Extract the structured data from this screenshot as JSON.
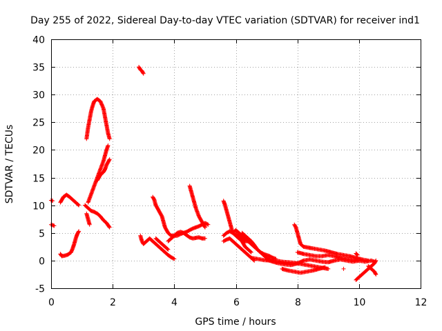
{
  "chart_data": {
    "type": "scatter",
    "title": "Day 255 of 2022, Sidereal Day-to-day VTEC variation (SDTVAR) for receiver ind1",
    "xlabel": "GPS time / hours",
    "ylabel": "SDTVAR / TECUs",
    "xlim": [
      0,
      12
    ],
    "ylim": [
      -5,
      40
    ],
    "xticks": [
      0,
      2,
      4,
      6,
      8,
      10,
      12
    ],
    "yticks": [
      -5,
      0,
      5,
      10,
      15,
      20,
      25,
      30,
      35,
      40
    ],
    "grid": true,
    "marker": "+",
    "color": "#ff0000",
    "tracks": [
      [
        [
          0.0,
          10.9
        ],
        [
          0.05,
          10.8
        ]
      ],
      [
        [
          0.0,
          6.5
        ],
        [
          0.05,
          6.4
        ],
        [
          0.1,
          6.3
        ]
      ],
      [
        [
          0.3,
          10.5
        ],
        [
          0.4,
          11.5
        ],
        [
          0.5,
          11.9
        ],
        [
          0.6,
          11.5
        ],
        [
          0.7,
          11.0
        ],
        [
          0.8,
          10.5
        ],
        [
          0.9,
          10.0
        ]
      ],
      [
        [
          0.3,
          1.2
        ],
        [
          0.35,
          0.8
        ],
        [
          0.45,
          0.9
        ],
        [
          0.55,
          1.1
        ],
        [
          0.65,
          1.5
        ],
        [
          0.7,
          2.2
        ],
        [
          0.75,
          3.0
        ],
        [
          0.8,
          4.0
        ],
        [
          0.85,
          4.8
        ],
        [
          0.9,
          5.3
        ]
      ],
      [
        [
          1.1,
          10.0
        ],
        [
          1.2,
          9.5
        ],
        [
          1.3,
          9.0
        ],
        [
          1.4,
          8.8
        ],
        [
          1.5,
          8.5
        ],
        [
          1.6,
          8.0
        ],
        [
          1.7,
          7.3
        ],
        [
          1.8,
          6.8
        ],
        [
          1.9,
          6.0
        ]
      ],
      [
        [
          1.15,
          8.5
        ],
        [
          1.2,
          7.5
        ],
        [
          1.25,
          6.5
        ]
      ],
      [
        [
          1.15,
          22.0
        ],
        [
          1.2,
          24.0
        ],
        [
          1.25,
          25.5
        ],
        [
          1.3,
          27.0
        ],
        [
          1.35,
          28.0
        ],
        [
          1.4,
          28.8
        ],
        [
          1.5,
          29.2
        ],
        [
          1.6,
          28.8
        ],
        [
          1.7,
          27.5
        ],
        [
          1.75,
          26.0
        ],
        [
          1.8,
          24.5
        ],
        [
          1.85,
          23.0
        ],
        [
          1.9,
          22.0
        ]
      ],
      [
        [
          1.2,
          10.5
        ],
        [
          1.3,
          12.0
        ],
        [
          1.4,
          13.5
        ],
        [
          1.5,
          15.0
        ],
        [
          1.6,
          16.5
        ],
        [
          1.7,
          18.0
        ],
        [
          1.75,
          19.0
        ],
        [
          1.8,
          20.0
        ],
        [
          1.85,
          20.8
        ]
      ],
      [
        [
          1.5,
          14.5
        ],
        [
          1.6,
          15.5
        ],
        [
          1.7,
          16.0
        ],
        [
          1.75,
          16.5
        ],
        [
          1.8,
          17.3
        ],
        [
          1.85,
          17.8
        ],
        [
          1.9,
          18.3
        ]
      ],
      [
        [
          2.85,
          35.0
        ],
        [
          2.9,
          34.5
        ],
        [
          2.95,
          34.3
        ],
        [
          3.0,
          33.8
        ]
      ],
      [
        [
          2.9,
          4.5
        ],
        [
          2.95,
          3.5
        ],
        [
          3.0,
          3.0
        ],
        [
          3.1,
          3.5
        ],
        [
          3.2,
          4.0
        ],
        [
          3.3,
          3.5
        ],
        [
          3.4,
          3.0
        ],
        [
          3.5,
          2.5
        ],
        [
          3.6,
          2.0
        ],
        [
          3.7,
          1.5
        ],
        [
          3.8,
          1.0
        ],
        [
          3.9,
          0.6
        ],
        [
          4.0,
          0.3
        ]
      ],
      [
        [
          3.3,
          11.5
        ],
        [
          3.35,
          11.0
        ],
        [
          3.4,
          10.0
        ],
        [
          3.5,
          9.0
        ],
        [
          3.6,
          8.0
        ],
        [
          3.65,
          7.0
        ],
        [
          3.7,
          6.0
        ],
        [
          3.8,
          5.0
        ],
        [
          3.9,
          4.5
        ],
        [
          4.0,
          4.5
        ],
        [
          4.1,
          4.5
        ],
        [
          4.2,
          4.8
        ],
        [
          4.3,
          5.0
        ],
        [
          4.4,
          4.6
        ],
        [
          4.5,
          4.2
        ],
        [
          4.6,
          4.0
        ],
        [
          4.7,
          4.1
        ],
        [
          4.8,
          4.2
        ],
        [
          4.9,
          4.0
        ],
        [
          5.0,
          4.0
        ]
      ],
      [
        [
          3.4,
          4.0
        ],
        [
          3.5,
          3.5
        ],
        [
          3.6,
          3.0
        ],
        [
          3.7,
          2.5
        ],
        [
          3.8,
          2.0
        ]
      ],
      [
        [
          3.8,
          3.5
        ],
        [
          3.9,
          4.0
        ],
        [
          4.0,
          4.5
        ],
        [
          4.1,
          5.0
        ],
        [
          4.2,
          5.2
        ],
        [
          4.3,
          5.0
        ],
        [
          4.4,
          5.2
        ],
        [
          4.5,
          5.5
        ],
        [
          4.6,
          5.8
        ],
        [
          4.7,
          6.0
        ],
        [
          4.8,
          6.2
        ],
        [
          4.9,
          6.5
        ],
        [
          5.0,
          6.8
        ],
        [
          5.1,
          6.5
        ]
      ],
      [
        [
          4.5,
          13.5
        ],
        [
          4.55,
          12.5
        ],
        [
          4.6,
          11.5
        ],
        [
          4.65,
          10.5
        ],
        [
          4.7,
          9.5
        ],
        [
          4.8,
          8.0
        ],
        [
          4.9,
          7.0
        ],
        [
          5.0,
          6.0
        ]
      ],
      [
        [
          5.6,
          10.8
        ],
        [
          5.65,
          10.0
        ],
        [
          5.7,
          9.0
        ],
        [
          5.75,
          8.0
        ],
        [
          5.8,
          7.0
        ],
        [
          5.85,
          6.0
        ],
        [
          5.9,
          5.0
        ],
        [
          6.0,
          4.5
        ],
        [
          6.1,
          4.0
        ],
        [
          6.2,
          3.5
        ],
        [
          6.3,
          2.5
        ],
        [
          6.4,
          2.0
        ],
        [
          6.5,
          1.5
        ]
      ],
      [
        [
          5.6,
          4.5
        ],
        [
          5.7,
          5.0
        ],
        [
          5.8,
          5.3
        ],
        [
          5.9,
          5.0
        ],
        [
          6.0,
          5.5
        ],
        [
          6.1,
          5.0
        ],
        [
          6.2,
          4.5
        ],
        [
          6.3,
          4.0
        ],
        [
          6.4,
          3.5
        ],
        [
          6.5,
          3.0
        ],
        [
          6.6,
          2.5
        ],
        [
          6.7,
          2.0
        ],
        [
          6.8,
          1.5
        ],
        [
          6.9,
          1.0
        ],
        [
          7.0,
          0.5
        ]
      ],
      [
        [
          5.6,
          3.5
        ],
        [
          5.7,
          3.8
        ],
        [
          5.8,
          4.0
        ],
        [
          5.9,
          3.5
        ],
        [
          6.0,
          3.0
        ],
        [
          6.1,
          2.5
        ],
        [
          6.2,
          2.0
        ],
        [
          6.3,
          1.5
        ],
        [
          6.4,
          1.0
        ],
        [
          6.5,
          0.5
        ],
        [
          6.6,
          0.0
        ]
      ],
      [
        [
          6.0,
          4.8
        ],
        [
          6.1,
          4.5
        ],
        [
          6.2,
          4.0
        ],
        [
          6.3,
          3.5
        ],
        [
          6.4,
          3.5
        ],
        [
          6.5,
          3.0
        ],
        [
          6.6,
          2.5
        ],
        [
          6.7,
          2.0
        ],
        [
          6.8,
          1.5
        ],
        [
          6.9,
          1.2
        ],
        [
          7.0,
          1.0
        ],
        [
          7.1,
          0.8
        ],
        [
          7.2,
          0.5
        ],
        [
          7.3,
          0.3
        ]
      ],
      [
        [
          6.2,
          5.0
        ],
        [
          6.3,
          4.5
        ],
        [
          6.4,
          4.0
        ],
        [
          6.5,
          3.5
        ],
        [
          6.6,
          2.8
        ],
        [
          6.7,
          2.0
        ],
        [
          6.8,
          1.5
        ],
        [
          6.9,
          1.0
        ],
        [
          7.0,
          0.5
        ],
        [
          7.1,
          0.2
        ]
      ],
      [
        [
          6.5,
          0.5
        ],
        [
          6.7,
          0.3
        ],
        [
          6.9,
          0.1
        ],
        [
          7.1,
          0.0
        ],
        [
          7.3,
          0.0
        ],
        [
          7.5,
          -0.2
        ],
        [
          7.7,
          -0.3
        ],
        [
          7.9,
          -0.4
        ],
        [
          8.1,
          -0.6
        ],
        [
          8.3,
          -0.8
        ],
        [
          8.5,
          -1.0
        ],
        [
          8.7,
          -1.2
        ],
        [
          8.9,
          -1.4
        ],
        [
          9.0,
          -1.5
        ]
      ],
      [
        [
          7.0,
          0.2
        ],
        [
          7.2,
          -0.2
        ],
        [
          7.4,
          -0.5
        ],
        [
          7.6,
          -0.7
        ],
        [
          7.8,
          -0.8
        ],
        [
          8.0,
          -0.5
        ],
        [
          8.2,
          0.0
        ],
        [
          8.4,
          0.2
        ],
        [
          8.6,
          0.0
        ],
        [
          8.8,
          -0.2
        ],
        [
          9.0,
          -0.3
        ],
        [
          9.2,
          0.0
        ],
        [
          9.4,
          0.2
        ],
        [
          9.6,
          0.0
        ],
        [
          9.8,
          -0.2
        ],
        [
          10.0,
          0.0
        ],
        [
          10.2,
          -0.2
        ],
        [
          10.4,
          0.0
        ],
        [
          10.5,
          -0.2
        ]
      ],
      [
        [
          7.5,
          -1.5
        ],
        [
          7.7,
          -1.8
        ],
        [
          7.9,
          -2.0
        ],
        [
          8.1,
          -2.2
        ],
        [
          8.3,
          -2.0
        ],
        [
          8.5,
          -1.8
        ],
        [
          8.7,
          -1.5
        ],
        [
          8.9,
          -1.2
        ]
      ],
      [
        [
          7.9,
          6.5
        ],
        [
          7.95,
          6.0
        ],
        [
          8.0,
          5.0
        ],
        [
          8.05,
          4.0
        ],
        [
          8.1,
          3.0
        ],
        [
          8.2,
          2.5
        ],
        [
          8.3,
          2.4
        ],
        [
          8.4,
          2.3
        ],
        [
          8.5,
          2.2
        ],
        [
          8.7,
          2.0
        ],
        [
          8.9,
          1.8
        ],
        [
          9.1,
          1.5
        ],
        [
          9.3,
          1.2
        ],
        [
          9.5,
          1.0
        ],
        [
          9.7,
          0.8
        ],
        [
          9.9,
          0.5
        ],
        [
          10.1,
          0.2
        ],
        [
          10.3,
          0.0
        ]
      ],
      [
        [
          8.0,
          1.5
        ],
        [
          8.2,
          1.2
        ],
        [
          8.4,
          1.0
        ],
        [
          8.6,
          0.8
        ],
        [
          8.8,
          0.8
        ],
        [
          9.0,
          1.0
        ],
        [
          9.2,
          0.8
        ],
        [
          9.4,
          0.5
        ],
        [
          9.6,
          0.3
        ],
        [
          9.8,
          0.1
        ],
        [
          10.0,
          0.0
        ]
      ],
      [
        [
          9.5,
          -1.5
        ]
      ],
      [
        [
          9.9,
          1.3
        ],
        [
          9.95,
          1.0
        ]
      ],
      [
        [
          9.9,
          -3.5
        ],
        [
          10.0,
          -3.0
        ],
        [
          10.1,
          -2.5
        ],
        [
          10.2,
          -2.0
        ],
        [
          10.3,
          -1.5
        ],
        [
          10.4,
          -1.0
        ],
        [
          10.5,
          -0.5
        ],
        [
          10.55,
          0.0
        ]
      ],
      [
        [
          10.3,
          -1.0
        ],
        [
          10.4,
          -1.5
        ],
        [
          10.5,
          -2.0
        ],
        [
          10.55,
          -2.5
        ]
      ]
    ]
  }
}
